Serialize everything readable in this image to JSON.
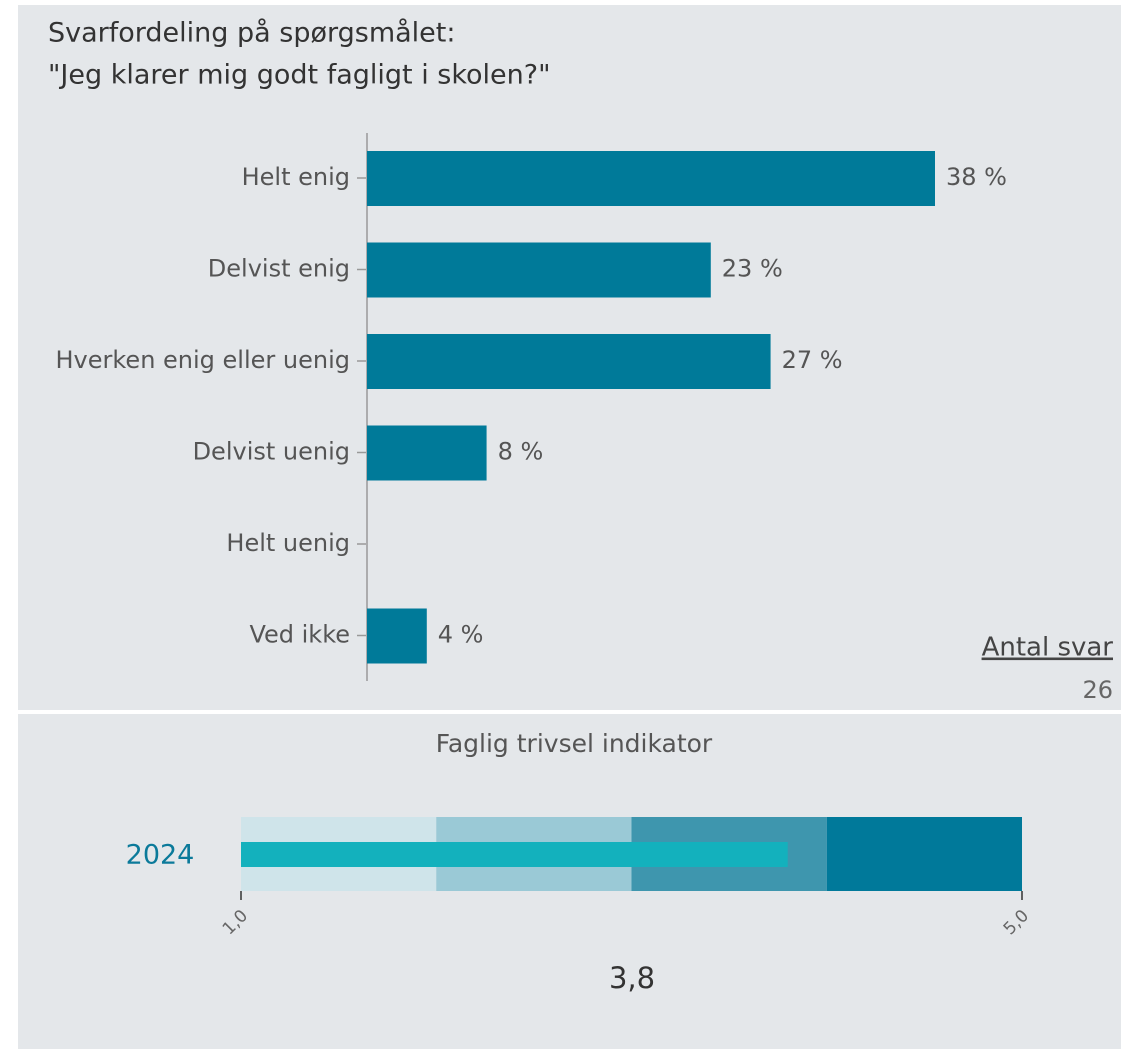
{
  "chart_data": [
    {
      "type": "hbar",
      "title": [
        "Svarfordeling på spørgsmålet:",
        "\"Jeg klarer mig godt fagligt i skolen?\""
      ],
      "categories": [
        "Helt enig",
        "Delvist enig",
        "Hverken enig eller uenig",
        "Delvist uenig",
        "Helt uenig",
        "Ved ikke"
      ],
      "values": [
        38,
        23,
        27,
        8,
        null,
        4
      ],
      "value_labels": [
        "38 %",
        "23 %",
        "27 %",
        "8 %",
        null,
        "4 %"
      ],
      "color": "#007a99",
      "count_label": "Antal svar",
      "count": 26
    },
    {
      "type": "bullet",
      "title": "Faglig trivsel indikator",
      "categories": [
        "2024"
      ],
      "values": [
        3.8
      ],
      "value_labels": [
        "3,8"
      ],
      "color": "#13b1bd",
      "xlim": [
        1,
        5
      ],
      "xticks": [
        {
          "value": 1,
          "label": "1,0"
        },
        {
          "value": 5,
          "label": "5,0"
        }
      ],
      "bands": [
        1,
        2,
        3,
        4,
        5
      ],
      "band_colors": [
        "#cfe4ea",
        "#9ac9d6",
        "#3e96ae",
        "#00799a"
      ]
    }
  ]
}
